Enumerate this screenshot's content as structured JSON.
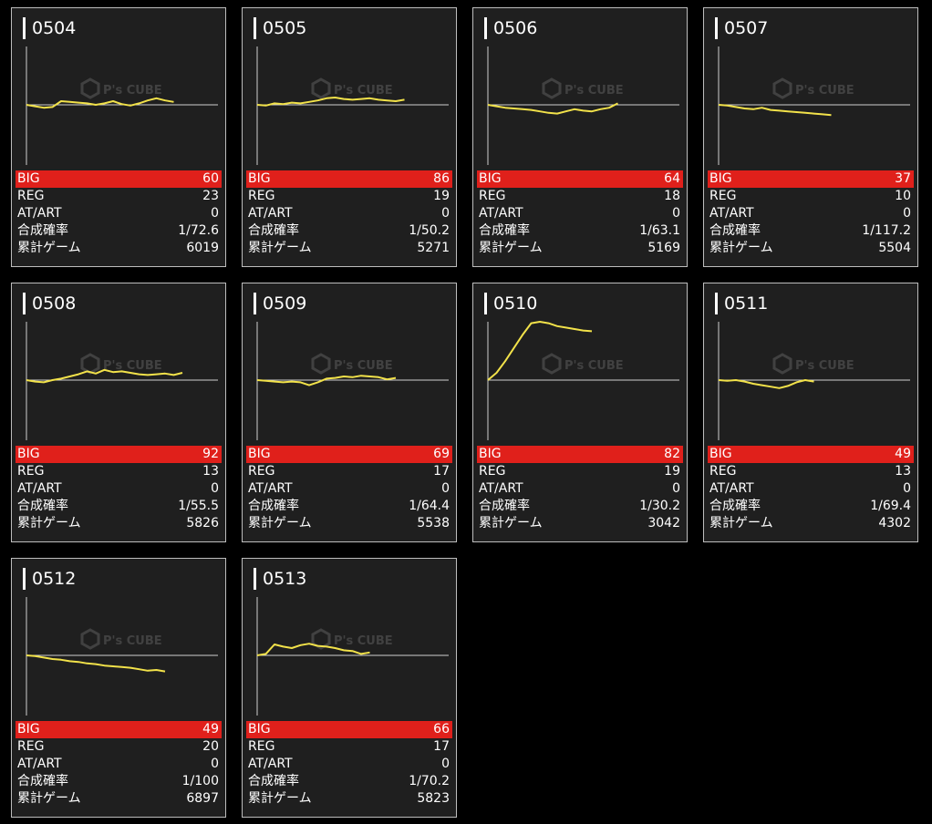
{
  "chart_data": [
    {
      "type": "line",
      "title": "0504",
      "x": [
        0,
        1,
        2,
        3,
        4,
        5,
        6,
        7,
        8,
        9,
        10,
        11,
        12,
        13,
        14,
        15,
        16,
        17
      ],
      "values": [
        0,
        -2,
        -4,
        -3,
        5,
        4,
        3,
        2,
        0,
        2,
        5,
        1,
        -1,
        2,
        6,
        9,
        6,
        4
      ]
    },
    {
      "type": "line",
      "title": "0505",
      "x": [
        0,
        1,
        2,
        3,
        4,
        5,
        6,
        7,
        8,
        9,
        10,
        11,
        12,
        13,
        14,
        15,
        16,
        17
      ],
      "values": [
        0,
        -1,
        2,
        1,
        3,
        2,
        4,
        6,
        9,
        10,
        8,
        7,
        8,
        9,
        7,
        6,
        5,
        7
      ]
    },
    {
      "type": "line",
      "title": "0506",
      "x": [
        0,
        1,
        2,
        3,
        4,
        5,
        6,
        7,
        8,
        9,
        10,
        11,
        12,
        13,
        14,
        15
      ],
      "values": [
        0,
        -2,
        -4,
        -5,
        -6,
        -7,
        -9,
        -11,
        -12,
        -9,
        -6,
        -8,
        -9,
        -6,
        -4,
        2
      ]
    },
    {
      "type": "line",
      "title": "0507",
      "x": [
        0,
        1,
        2,
        3,
        4,
        5,
        6,
        7,
        8,
        9,
        10,
        11,
        12,
        13
      ],
      "values": [
        0,
        -1,
        -3,
        -5,
        -6,
        -4,
        -7,
        -8,
        -9,
        -10,
        -11,
        -12,
        -13,
        -14
      ]
    },
    {
      "type": "line",
      "title": "0508",
      "x": [
        0,
        1,
        2,
        3,
        4,
        5,
        6,
        7,
        8,
        9,
        10,
        11,
        12,
        13,
        14,
        15,
        16,
        17,
        18
      ],
      "values": [
        0,
        -2,
        -3,
        0,
        2,
        5,
        8,
        12,
        9,
        14,
        11,
        12,
        10,
        8,
        7,
        8,
        9,
        7,
        10
      ]
    },
    {
      "type": "line",
      "title": "0509",
      "x": [
        0,
        1,
        2,
        3,
        4,
        5,
        6,
        7,
        8,
        9,
        10,
        11,
        12,
        13,
        14,
        15,
        16
      ],
      "values": [
        0,
        -1,
        -2,
        -3,
        -2,
        -3,
        -7,
        -3,
        2,
        3,
        5,
        4,
        6,
        5,
        4,
        1,
        3
      ]
    },
    {
      "type": "line",
      "title": "0510",
      "x": [
        0,
        1,
        2,
        3,
        4,
        5,
        6,
        7,
        8,
        9,
        10,
        11,
        12
      ],
      "values": [
        0,
        10,
        26,
        44,
        62,
        78,
        80,
        78,
        74,
        72,
        70,
        68,
        67
      ]
    },
    {
      "type": "line",
      "title": "0511",
      "x": [
        0,
        1,
        2,
        3,
        4,
        5,
        6,
        7,
        8,
        9,
        10,
        11
      ],
      "values": [
        0,
        -1,
        0,
        -2,
        -5,
        -7,
        -9,
        -11,
        -8,
        -3,
        0,
        -2
      ]
    },
    {
      "type": "line",
      "title": "0512",
      "x": [
        0,
        1,
        2,
        3,
        4,
        5,
        6,
        7,
        8,
        9,
        10,
        11,
        12,
        13,
        14,
        15,
        16
      ],
      "values": [
        0,
        -1,
        -3,
        -5,
        -6,
        -8,
        -9,
        -11,
        -12,
        -14,
        -15,
        -16,
        -17,
        -19,
        -21,
        -20,
        -22
      ]
    },
    {
      "type": "line",
      "title": "0513",
      "x": [
        0,
        1,
        2,
        3,
        4,
        5,
        6,
        7,
        8,
        9,
        10,
        11,
        12,
        13
      ],
      "values": [
        0,
        2,
        15,
        12,
        10,
        14,
        16,
        13,
        12,
        10,
        7,
        6,
        2,
        4
      ]
    }
  ],
  "machines": [
    {
      "id": "0504",
      "big": "60",
      "reg": "23",
      "atart": "0",
      "prob": "1/72.6",
      "games": "6019"
    },
    {
      "id": "0505",
      "big": "86",
      "reg": "19",
      "atart": "0",
      "prob": "1/50.2",
      "games": "5271"
    },
    {
      "id": "0506",
      "big": "64",
      "reg": "18",
      "atart": "0",
      "prob": "1/63.1",
      "games": "5169"
    },
    {
      "id": "0507",
      "big": "37",
      "reg": "10",
      "atart": "0",
      "prob": "1/117.2",
      "games": "5504"
    },
    {
      "id": "0508",
      "big": "92",
      "reg": "13",
      "atart": "0",
      "prob": "1/55.5",
      "games": "5826"
    },
    {
      "id": "0509",
      "big": "69",
      "reg": "17",
      "atart": "0",
      "prob": "1/64.4",
      "games": "5538"
    },
    {
      "id": "0510",
      "big": "82",
      "reg": "19",
      "atart": "0",
      "prob": "1/30.2",
      "games": "3042"
    },
    {
      "id": "0511",
      "big": "49",
      "reg": "13",
      "atart": "0",
      "prob": "1/69.4",
      "games": "4302"
    },
    {
      "id": "0512",
      "big": "49",
      "reg": "20",
      "atart": "0",
      "prob": "1/100",
      "games": "6897"
    },
    {
      "id": "0513",
      "big": "66",
      "reg": "17",
      "atart": "0",
      "prob": "1/70.2",
      "games": "5823"
    }
  ],
  "labels": {
    "big": "BIG",
    "reg": "REG",
    "atart": "AT/ART",
    "prob": "合成確率",
    "games": "累計ゲーム"
  },
  "watermark": {
    "brand": "P's CUBE"
  },
  "colors": {
    "line": "#f2e24a",
    "big_bg": "#e0201b",
    "card_bg": "#1f1f1f",
    "axis": "#cfcfcf"
  }
}
